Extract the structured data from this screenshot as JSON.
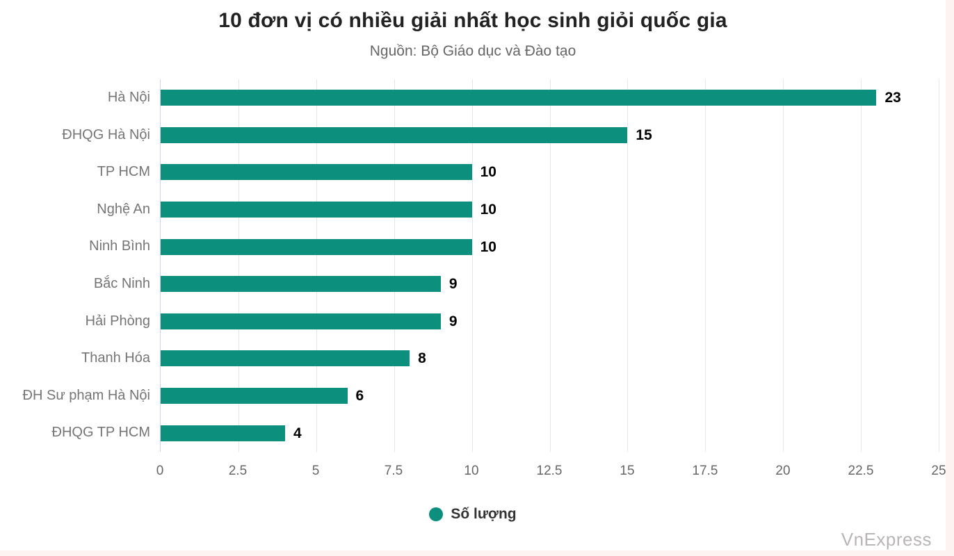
{
  "chart": {
    "title": "10 đơn vị có nhiều giải nhất học sinh giỏi quốc gia",
    "subtitle": "Nguồn: Bộ Giáo dục và Đào tạo",
    "watermark": "VnExpress"
  },
  "chart_data": {
    "type": "bar",
    "orientation": "horizontal",
    "title": "10 đơn vị có nhiều giải nhất học sinh giỏi quốc gia",
    "subtitle": "Nguồn: Bộ Giáo dục và Đào tạo",
    "categories": [
      "Hà Nội",
      "ĐHQG Hà Nội",
      "TP HCM",
      "Nghệ An",
      "Ninh Bình",
      "Bắc Ninh",
      "Hải Phòng",
      "Thanh Hóa",
      "ĐH Sư phạm Hà Nội",
      "ĐHQG TP HCM"
    ],
    "values": [
      23,
      15,
      10,
      10,
      10,
      9,
      9,
      8,
      6,
      4
    ],
    "series_name": "Số lượng",
    "xlabel": "",
    "ylabel": "",
    "xlim": [
      0,
      25
    ],
    "xticks": [
      0,
      2.5,
      5,
      7.5,
      10,
      12.5,
      15,
      17.5,
      20,
      22.5,
      25
    ],
    "grid": "vertical-only",
    "legend_position": "bottom-center",
    "colors": {
      "bar": "#0d8f7d",
      "grid": "#e6e6e6",
      "axis_line": "#ccd6eb",
      "category_label": "#757575",
      "tick_label": "#666666",
      "value_label": "#000000",
      "title": "#222222",
      "subtitle": "#666666",
      "legend_text": "#333333",
      "watermark": "#b9b5b5",
      "page_background": "#fdf4f1",
      "chart_background": "#ffffff"
    }
  }
}
